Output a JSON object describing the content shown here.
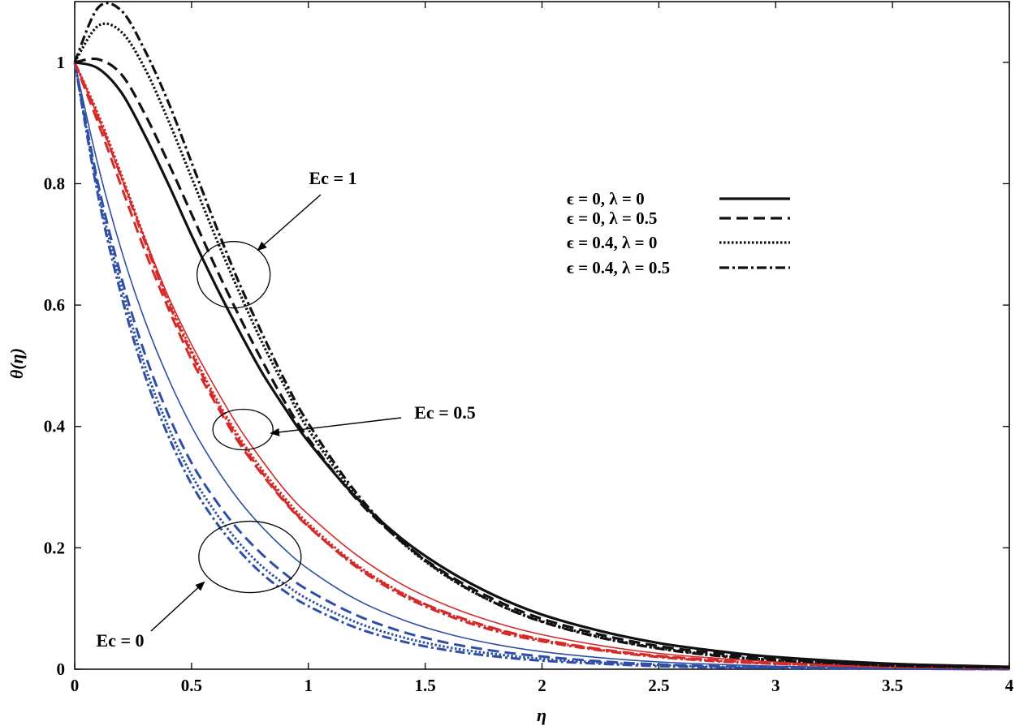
{
  "chart_data": {
    "type": "line",
    "title": "",
    "xlabel": "η",
    "ylabel": "θ(η)",
    "xlim": [
      0,
      4
    ],
    "ylim": [
      0,
      1.1
    ],
    "xticks": [
      "0",
      "0.5",
      "1",
      "1.5",
      "2",
      "2.5",
      "3",
      "3.5",
      "4"
    ],
    "yticks": [
      "0",
      "0.2",
      "0.4",
      "0.6",
      "0.8",
      "1"
    ],
    "legend": {
      "placement": "top-right",
      "entries": [
        {
          "label": "ϵ = 0, λ = 0",
          "style": "solid"
        },
        {
          "label": "ϵ = 0, λ = 0.5",
          "style": "dashed"
        },
        {
          "label": "ϵ = 0.4, λ = 0",
          "style": "dotted"
        },
        {
          "label": "ϵ = 0.4, λ = 0.5",
          "style": "dashdot"
        }
      ]
    },
    "annotations": [
      {
        "text": "Ec = 1",
        "target_x": 0.68,
        "target_y": 0.65
      },
      {
        "text": "Ec = 0.5",
        "target_x": 0.72,
        "target_y": 0.395
      },
      {
        "text": "Ec = 0",
        "target_x": 0.75,
        "target_y": 0.185
      }
    ],
    "x": [
      0,
      0.1,
      0.2,
      0.3,
      0.4,
      0.5,
      0.6,
      0.7,
      0.8,
      0.9,
      1.0,
      1.2,
      1.4,
      1.6,
      1.8,
      2.0,
      2.25,
      2.5,
      2.75,
      3.0,
      3.5,
      4.0
    ],
    "series": [
      {
        "name": "Ec = 0, ϵ = 0, λ = 0",
        "group": "Ec = 0",
        "style": "solid",
        "color": "#2f4fa6",
        "values": [
          1.0,
          0.83,
          0.69,
          0.575,
          0.48,
          0.4,
          0.335,
          0.28,
          0.235,
          0.197,
          0.165,
          0.116,
          0.082,
          0.058,
          0.041,
          0.029,
          0.019,
          0.012,
          0.008,
          0.005,
          0.002,
          0.001
        ]
      },
      {
        "name": "Ec = 0, ϵ = 0, λ = 0.5",
        "group": "Ec = 0",
        "style": "dashed",
        "color": "#2f4fa6",
        "values": [
          1.0,
          0.8,
          0.645,
          0.52,
          0.42,
          0.34,
          0.28,
          0.23,
          0.19,
          0.157,
          0.13,
          0.09,
          0.062,
          0.043,
          0.03,
          0.021,
          0.013,
          0.008,
          0.005,
          0.003,
          0.001,
          0.0
        ]
      },
      {
        "name": "Ec = 0, ϵ = 0.4, λ = 0",
        "group": "Ec = 0",
        "style": "dotted",
        "color": "#2f4fa6",
        "values": [
          1.0,
          0.79,
          0.63,
          0.5,
          0.4,
          0.32,
          0.26,
          0.21,
          0.17,
          0.14,
          0.115,
          0.078,
          0.053,
          0.036,
          0.025,
          0.017,
          0.011,
          0.007,
          0.004,
          0.003,
          0.001,
          0.0
        ]
      },
      {
        "name": "Ec = 0, ϵ = 0.4, λ = 0.5",
        "group": "Ec = 0",
        "style": "dashdot",
        "color": "#2f4fa6",
        "values": [
          1.0,
          0.78,
          0.615,
          0.485,
          0.385,
          0.305,
          0.245,
          0.197,
          0.158,
          0.128,
          0.104,
          0.069,
          0.046,
          0.031,
          0.021,
          0.014,
          0.009,
          0.005,
          0.003,
          0.002,
          0.001,
          0.0
        ]
      },
      {
        "name": "Ec = 0.5, ϵ = 0, λ = 0",
        "group": "Ec = 0.5",
        "style": "solid",
        "color": "#d42a2a",
        "values": [
          1.0,
          0.91,
          0.81,
          0.71,
          0.615,
          0.535,
          0.465,
          0.4,
          0.345,
          0.295,
          0.255,
          0.19,
          0.14,
          0.104,
          0.077,
          0.057,
          0.039,
          0.026,
          0.018,
          0.012,
          0.005,
          0.002
        ]
      },
      {
        "name": "Ec = 0.5, ϵ = 0, λ = 0.5",
        "group": "Ec = 0.5",
        "style": "dashed",
        "color": "#d42a2a",
        "values": [
          1.0,
          0.9,
          0.795,
          0.69,
          0.595,
          0.51,
          0.44,
          0.375,
          0.322,
          0.275,
          0.235,
          0.172,
          0.125,
          0.092,
          0.067,
          0.049,
          0.033,
          0.022,
          0.015,
          0.01,
          0.004,
          0.002
        ]
      },
      {
        "name": "Ec = 0.5, ϵ = 0.4, λ = 0",
        "group": "Ec = 0.5",
        "style": "dotted",
        "color": "#d42a2a",
        "values": [
          1.0,
          0.915,
          0.815,
          0.71,
          0.61,
          0.525,
          0.45,
          0.385,
          0.33,
          0.282,
          0.24,
          0.174,
          0.126,
          0.091,
          0.066,
          0.048,
          0.032,
          0.021,
          0.014,
          0.009,
          0.004,
          0.002
        ]
      },
      {
        "name": "Ec = 0.5, ϵ = 0.4, λ = 0.5",
        "group": "Ec = 0.5",
        "style": "dashdot",
        "color": "#d42a2a",
        "values": [
          1.0,
          0.91,
          0.81,
          0.705,
          0.605,
          0.52,
          0.445,
          0.38,
          0.325,
          0.277,
          0.236,
          0.17,
          0.122,
          0.088,
          0.063,
          0.046,
          0.031,
          0.02,
          0.013,
          0.009,
          0.004,
          0.002
        ]
      },
      {
        "name": "Ec = 1, ϵ = 0, λ = 0",
        "group": "Ec = 1",
        "style": "solid",
        "color": "#111111",
        "values": [
          1.0,
          0.99,
          0.95,
          0.88,
          0.8,
          0.715,
          0.635,
          0.56,
          0.49,
          0.43,
          0.375,
          0.285,
          0.215,
          0.162,
          0.121,
          0.09,
          0.063,
          0.043,
          0.03,
          0.02,
          0.009,
          0.004
        ]
      },
      {
        "name": "Ec = 1, ϵ = 0, λ = 0.5",
        "group": "Ec = 1",
        "style": "dashed",
        "color": "#111111",
        "values": [
          1.0,
          1.005,
          0.98,
          0.915,
          0.835,
          0.75,
          0.665,
          0.585,
          0.51,
          0.44,
          0.38,
          0.283,
          0.21,
          0.155,
          0.114,
          0.083,
          0.057,
          0.038,
          0.026,
          0.017,
          0.007,
          0.003
        ]
      },
      {
        "name": "Ec = 1, ϵ = 0.4, λ = 0",
        "group": "Ec = 1",
        "style": "dotted",
        "color": "#111111",
        "values": [
          1.0,
          1.06,
          1.05,
          0.99,
          0.905,
          0.81,
          0.715,
          0.625,
          0.54,
          0.465,
          0.395,
          0.288,
          0.209,
          0.151,
          0.109,
          0.079,
          0.053,
          0.035,
          0.023,
          0.015,
          0.006,
          0.003
        ]
      },
      {
        "name": "Ec = 1, ϵ = 0.4, λ = 0.5",
        "group": "Ec = 1",
        "style": "dashdot",
        "color": "#111111",
        "values": [
          1.0,
          1.09,
          1.085,
          1.02,
          0.935,
          0.835,
          0.735,
          0.64,
          0.555,
          0.475,
          0.405,
          0.293,
          0.211,
          0.152,
          0.109,
          0.078,
          0.052,
          0.034,
          0.022,
          0.015,
          0.006,
          0.003
        ]
      }
    ]
  }
}
